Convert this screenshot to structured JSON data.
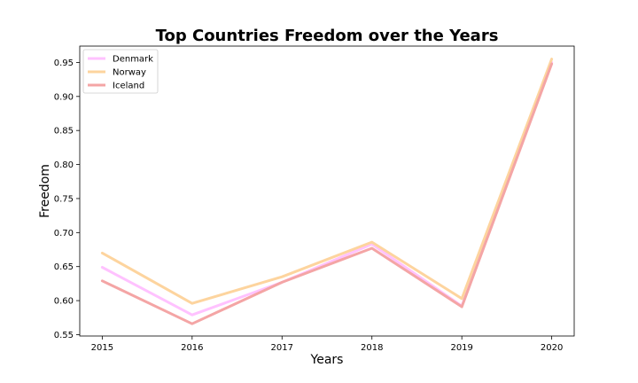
{
  "chart_data": {
    "type": "line",
    "title": "Top Countries Freedom over the Years",
    "xlabel": "Years",
    "ylabel": "Freedom",
    "x": [
      "2015",
      "2016",
      "2017",
      "2018",
      "2019",
      "2020"
    ],
    "xlim": [
      2014.75,
      2020.25
    ],
    "ylim": [
      0.548,
      0.974
    ],
    "yticks": [
      "0.55",
      "0.60",
      "0.65",
      "0.70",
      "0.75",
      "0.80",
      "0.85",
      "0.90",
      "0.95"
    ],
    "grid": false,
    "legend_position": "top-left",
    "series": [
      {
        "name": "Denmark",
        "color": "#ffc2ff",
        "values": [
          0.649,
          0.579,
          0.627,
          0.683,
          0.592,
          0.95
        ]
      },
      {
        "name": "Norway",
        "color": "#fdd49e",
        "values": [
          0.67,
          0.596,
          0.635,
          0.686,
          0.603,
          0.955
        ]
      },
      {
        "name": "Iceland",
        "color": "#f4a5a5",
        "values": [
          0.629,
          0.566,
          0.627,
          0.677,
          0.591,
          0.948
        ]
      }
    ]
  }
}
